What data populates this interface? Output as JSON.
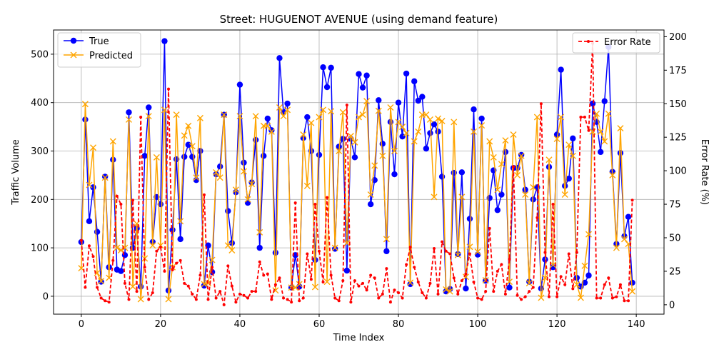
{
  "chart_data": {
    "type": "line",
    "title": "Street: HUGUENOT AVENUE (using demand feature)",
    "xlabel": "Time Index",
    "ylabel": "Traffic Volume",
    "y2label": "Error Rate (%)",
    "xlim": [
      -7,
      147
    ],
    "ylim": [
      -37,
      550
    ],
    "y2lim": [
      -7,
      205
    ],
    "xticks": [
      0,
      20,
      40,
      60,
      80,
      100,
      120,
      140
    ],
    "yticks": [
      0,
      100,
      200,
      300,
      400,
      500
    ],
    "y2ticks": [
      0,
      25,
      50,
      75,
      100,
      125,
      150,
      175,
      200
    ],
    "grid": true,
    "legend_left": "upper-left",
    "legend_right": "upper-right",
    "colors": {
      "true": "#0000ff",
      "predicted": "#ffa500",
      "error": "#ff0000"
    },
    "series": [
      {
        "name": "True",
        "axis": "left",
        "values": [
          112,
          365,
          155,
          225,
          133,
          30,
          247,
          60,
          282,
          55,
          52,
          85,
          380,
          100,
          140,
          20,
          290,
          390,
          112,
          205,
          190,
          527,
          12,
          137,
          283,
          118,
          288,
          313,
          288,
          240,
          300,
          22,
          105,
          50,
          252,
          268,
          375,
          176,
          110,
          215,
          437,
          276,
          193,
          235,
          323,
          100,
          290,
          367,
          343,
          90,
          492,
          380,
          398,
          18,
          85,
          20,
          327,
          370,
          300,
          75,
          292,
          473,
          432,
          472,
          98,
          309,
          325,
          53,
          325,
          287,
          459,
          431,
          456,
          190,
          240,
          405,
          315,
          93,
          360,
          252,
          400,
          330,
          460,
          25,
          444,
          404,
          412,
          305,
          337,
          355,
          340,
          247,
          10,
          15,
          255,
          87,
          256,
          16,
          160,
          386,
          86,
          367,
          32,
          203,
          260,
          178,
          210,
          298,
          18,
          265,
          265,
          292,
          220,
          30,
          200,
          225,
          16,
          76,
          267,
          60,
          334,
          468,
          228,
          243,
          326,
          38,
          20,
          28,
          43,
          398,
          360,
          298,
          403,
          515,
          257,
          108,
          296,
          124,
          164,
          28
        ],
        "markers": "circle"
      },
      {
        "name": "Predicted",
        "axis": "left",
        "values": [
          58,
          397,
          230,
          307,
          48,
          31,
          245,
          38,
          320,
          100,
          95,
          100,
          365,
          20,
          150,
          -6,
          78,
          372,
          105,
          287,
          105,
          385,
          -6,
          60,
          375,
          155,
          332,
          352,
          310,
          245,
          368,
          25,
          27,
          75,
          256,
          245,
          375,
          105,
          95,
          220,
          372,
          258,
          200,
          232,
          372,
          132,
          352,
          352,
          340,
          12,
          390,
          372,
          385,
          18,
          18,
          25,
          334,
          228,
          358,
          19,
          370,
          385,
          30,
          382,
          100,
          300,
          380,
          110,
          331,
          318,
          370,
          375,
          403,
          210,
          270,
          383,
          290,
          118,
          390,
          300,
          360,
          350,
          337,
          28,
          320,
          340,
          375,
          375,
          365,
          205,
          367,
          362,
          14,
          10,
          360,
          85,
          205,
          40,
          102,
          340,
          92,
          353,
          33,
          320,
          287,
          220,
          273,
          322,
          30,
          334,
          250,
          290,
          210,
          27,
          225,
          370,
          -3,
          38,
          282,
          65,
          325,
          370,
          210,
          313,
          290,
          24,
          -3,
          63,
          128,
          340,
          377,
          340,
          320,
          377,
          250,
          100,
          347,
          118,
          108,
          10
        ],
        "markers": "x"
      },
      {
        "name": "Error Rate",
        "axis": "right",
        "values": [
          48,
          13,
          44,
          36,
          13,
          5,
          3,
          2,
          33,
          81,
          75,
          16,
          4,
          78,
          10,
          140,
          28,
          4,
          9,
          40,
          43,
          25,
          161,
          26,
          31,
          33,
          16,
          14,
          8,
          4,
          22,
          82,
          4,
          28,
          5,
          10,
          0,
          29,
          14,
          2,
          8,
          7,
          5,
          10,
          10,
          32,
          22,
          23,
          4,
          15,
          20,
          5,
          4,
          2,
          76,
          3,
          5,
          38,
          19,
          75,
          40,
          17,
          80,
          22,
          5,
          3,
          18,
          149,
          2,
          18,
          14,
          16,
          11,
          22,
          20,
          5,
          8,
          27,
          2,
          11,
          9,
          5,
          30,
          43,
          28,
          17,
          9,
          5,
          16,
          42,
          8,
          47,
          40,
          38,
          20,
          8,
          18,
          23,
          38,
          17,
          5,
          4,
          10,
          57,
          10,
          25,
          30,
          8,
          34,
          103,
          7,
          4,
          6,
          10,
          13,
          65,
          150,
          39,
          6,
          75,
          6,
          21,
          15,
          38,
          12,
          39,
          140,
          140,
          130,
          195,
          5,
          5,
          15,
          20,
          5,
          6,
          15,
          3,
          3,
          78
        ],
        "markers": "dot-dashed"
      }
    ]
  }
}
